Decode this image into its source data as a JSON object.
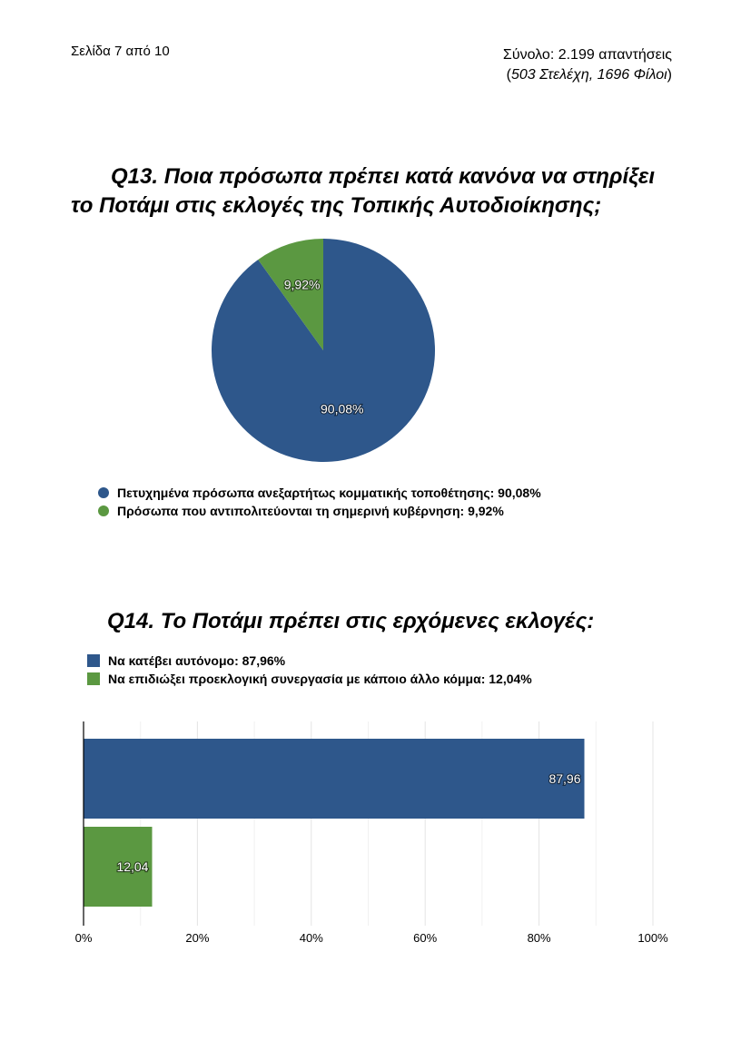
{
  "header": {
    "page_label": "Σελίδα 7 από 10",
    "total_label": "Σύνολο: 2.199 απαντήσεις",
    "breakdown_open": "(",
    "breakdown_text": "503 Στελέχη, 1696 Φίλοι",
    "breakdown_close": ")"
  },
  "colors": {
    "blue": "#2e578b",
    "green": "#5b9841"
  },
  "chart_data": [
    {
      "type": "pie",
      "title_prefix": "Q13.",
      "title": "Ποια πρόσωπα πρέπει κατά κανόνα να στηρίξει το Ποτάμι στις εκλογές της Τοπικής Αυτοδιοίκησης;",
      "slices": [
        {
          "label": "Πετυχημένα πρόσωπα ανεξαρτήτως κομματικής τοποθέτησης: 90,08%",
          "value": 90.08,
          "data_label": "90,08%",
          "color": "#2e578b"
        },
        {
          "label": "Πρόσωπα που αντιπολιτεύονται τη σημερινή κυβέρνηση: 9,92%",
          "value": 9.92,
          "data_label": "9,92%",
          "color": "#5b9841"
        }
      ]
    },
    {
      "type": "bar",
      "orientation": "horizontal",
      "title_prefix": "Q14.",
      "title": "Το Ποτάμι πρέπει στις ερχόμενες εκλογές:",
      "series": [
        {
          "name": "Να κατέβει αυτόνομο: 87,96%",
          "value": 87.96,
          "data_label": "87,96",
          "color": "#2e578b"
        },
        {
          "name": "Να επιδιώξει προεκλογική συνεργασία με κάποιο άλλο κόμμα: 12,04%",
          "value": 12.04,
          "data_label": "12,04",
          "color": "#5b9841"
        }
      ],
      "xlim": [
        0,
        100
      ],
      "xticks": [
        0,
        20,
        40,
        60,
        80,
        100
      ],
      "xtick_labels": [
        "0%",
        "20%",
        "40%",
        "60%",
        "80%",
        "100%"
      ],
      "grid": true
    }
  ]
}
